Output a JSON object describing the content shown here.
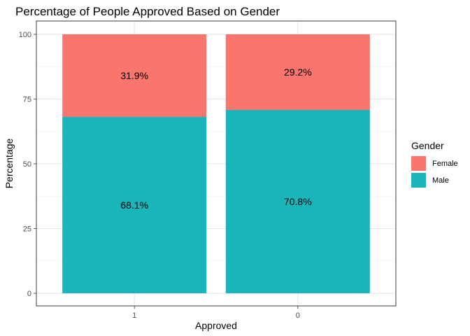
{
  "chart_data": {
    "type": "bar",
    "stacked": true,
    "title": "Percentage of People Approved Based on Gender",
    "xlabel": "Approved",
    "ylabel": "Percentage",
    "categories": [
      "1",
      "0"
    ],
    "ylim": [
      0,
      100
    ],
    "yticks": [
      0,
      25,
      50,
      75,
      100
    ],
    "grid": true,
    "legend": {
      "title": "Gender",
      "position": "right"
    },
    "series": [
      {
        "name": "Female",
        "values": [
          31.9,
          29.2
        ],
        "labels": [
          "31.9%",
          "29.2%"
        ],
        "color": "#F8766D"
      },
      {
        "name": "Male",
        "values": [
          68.1,
          70.8
        ],
        "labels": [
          "68.1%",
          "70.8%"
        ],
        "color": "#1AB5BB"
      }
    ]
  }
}
